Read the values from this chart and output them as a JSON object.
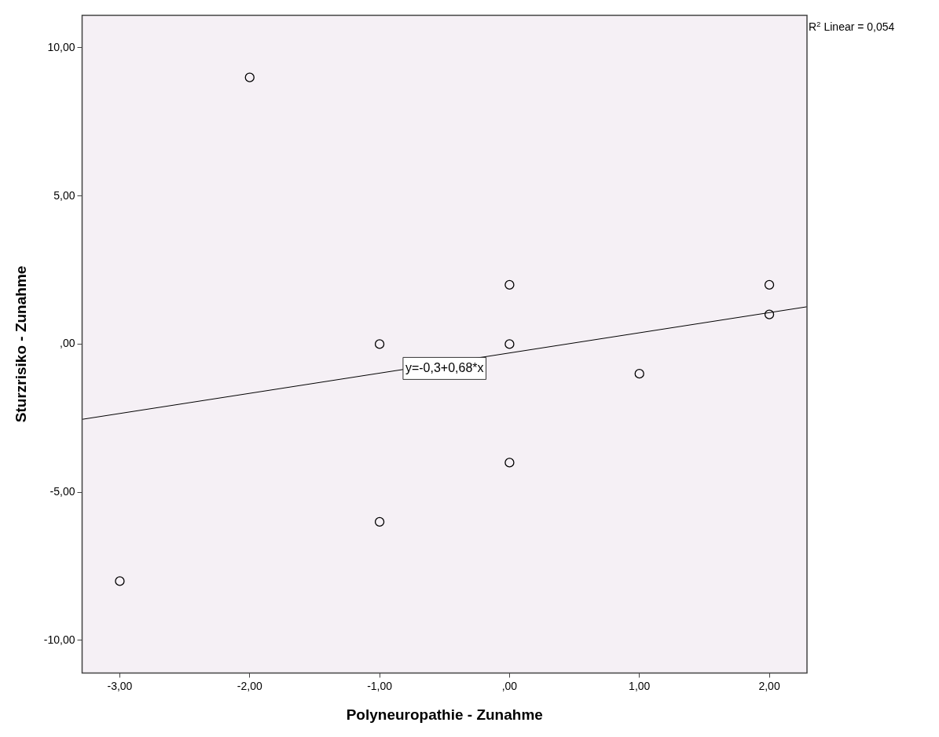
{
  "chart_data": {
    "type": "scatter",
    "xlabel": "Polyneuropathie - Zunahme",
    "ylabel": "Sturzrisiko - Zunahme",
    "series": [
      {
        "color": "#000000",
        "marker": "circle",
        "x": [
          -2,
          0,
          2,
          2,
          -1,
          0,
          1,
          0,
          -1,
          -3
        ],
        "values": [
          9,
          2,
          2,
          1,
          0,
          0,
          -1,
          -4,
          -6,
          -8
        ]
      },
      {
        "type": "line",
        "color": "#000000",
        "x": [
          -3.29,
          2.29
        ],
        "values": [
          -2.54,
          1.26
        ]
      }
    ],
    "legend": false,
    "xlim": [
      -3.29,
      2.29
    ],
    "ylim": [
      -11.1,
      11.1
    ],
    "xticks": [
      {
        "value": -3,
        "label": "-3,00"
      },
      {
        "value": -2,
        "label": "-2,00"
      },
      {
        "value": -1,
        "label": "-1,00"
      },
      {
        "value": 0,
        "label": ",00"
      },
      {
        "value": 1,
        "label": "1,00"
      },
      {
        "value": 2,
        "label": "2,00"
      }
    ],
    "yticks": [
      {
        "value": -10,
        "label": "-10,00"
      },
      {
        "value": -5,
        "label": "-5,00"
      },
      {
        "value": 0,
        "label": ",00"
      },
      {
        "value": 5,
        "label": "5,00"
      },
      {
        "value": 10,
        "label": "10,00"
      }
    ],
    "annotations": [
      "R$^{2}$ Linear = 0,054",
      "y=-0,3+0,68*x"
    ]
  }
}
